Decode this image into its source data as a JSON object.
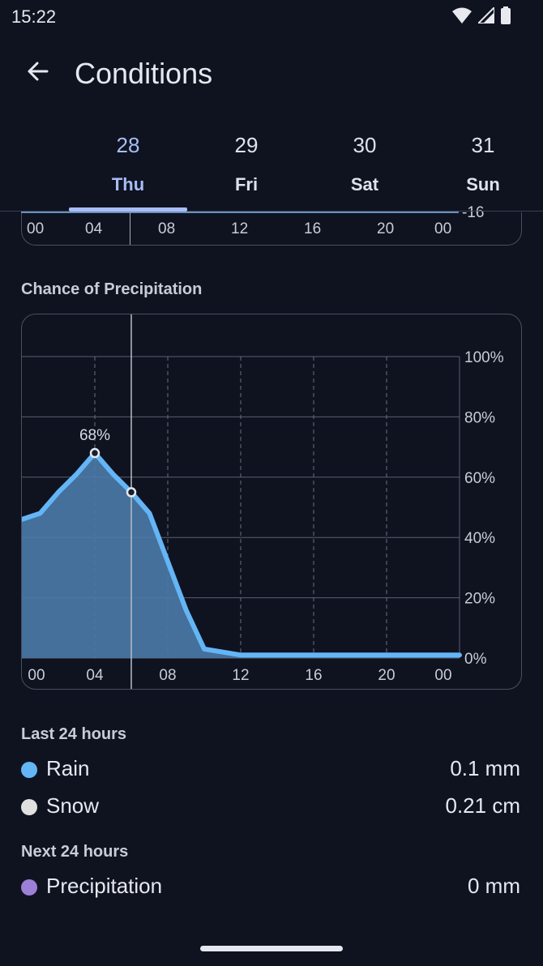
{
  "status": {
    "time": "15:22"
  },
  "app_bar": {
    "title": "Conditions",
    "back_icon": "arrow-left-icon"
  },
  "tabs": [
    {
      "num": "28",
      "day": "Thu",
      "active": true
    },
    {
      "num": "29",
      "day": "Fri",
      "active": false
    },
    {
      "num": "30",
      "day": "Sat",
      "active": false
    },
    {
      "num": "31",
      "day": "Sun",
      "active": false
    }
  ],
  "temp_chart_tail": {
    "x_ticks": [
      "00",
      "04",
      "08",
      "12",
      "16",
      "20",
      "00"
    ],
    "y_label_partial": "-16"
  },
  "precip_section": {
    "title": "Chance of Precipitation"
  },
  "chart_data": {
    "type": "area",
    "x": [
      0,
      1,
      2,
      3,
      4,
      5,
      6,
      7,
      8,
      9,
      10,
      11,
      12,
      13,
      14,
      15,
      16,
      17,
      18,
      19,
      20,
      21,
      22,
      23,
      24
    ],
    "series": [
      {
        "values": [
          46,
          48,
          55,
          61,
          68,
          61,
          55,
          48,
          32,
          16,
          3,
          2,
          1,
          1,
          1,
          1,
          1,
          1,
          1,
          1,
          1,
          1,
          1,
          1,
          1
        ]
      }
    ],
    "x_ticks": [
      "00",
      "04",
      "08",
      "12",
      "16",
      "20",
      "00"
    ],
    "y_ticks": [
      "100%",
      "80%",
      "60%",
      "40%",
      "20%",
      "0%"
    ],
    "ylim": [
      0,
      100
    ],
    "peak_label": "68%",
    "marker_hour": 6,
    "colors": {
      "line": "#64b5f6",
      "fill": "#4a7ba9"
    }
  },
  "last24": {
    "title": "Last 24 hours",
    "items": [
      {
        "label": "Rain",
        "value": "0.1 mm",
        "color": "#64b5f6"
      },
      {
        "label": "Snow",
        "value": "0.21 cm",
        "color": "#e0e0e0"
      }
    ]
  },
  "next24": {
    "title": "Next 24 hours",
    "items": [
      {
        "label": "Precipitation",
        "value": "0 mm",
        "color": "#9c7fd6"
      }
    ]
  }
}
